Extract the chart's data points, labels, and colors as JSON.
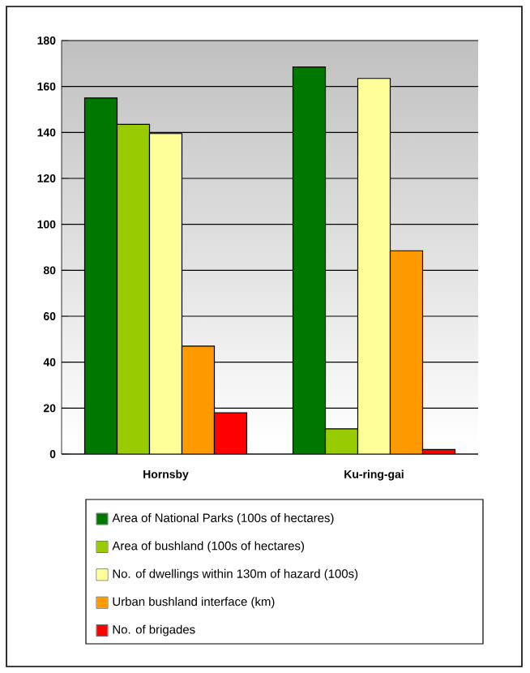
{
  "chart_data": {
    "type": "bar",
    "categories": [
      "Hornsby",
      "Ku-ring-gai"
    ],
    "series": [
      {
        "name": "Area of National Parks (100s of hectares)",
        "color": "#007800",
        "values": [
          155,
          168.5
        ]
      },
      {
        "name": "Area of bushland (100s of hectares)",
        "color": "#99cc00",
        "values": [
          143.5,
          11
        ]
      },
      {
        "name": "No. of dwellings within 130m of hazard (100s)",
        "color": "#ffff99",
        "values": [
          139.5,
          163.5
        ]
      },
      {
        "name": "Urban bushland interface (km)",
        "color": "#ff9900",
        "values": [
          47,
          88.5
        ]
      },
      {
        "name": "No. of brigades",
        "color": "#ff0000",
        "values": [
          18,
          2
        ]
      }
    ],
    "ylim": [
      0,
      180
    ],
    "yticks": [
      0,
      20,
      40,
      60,
      80,
      100,
      120,
      140,
      160,
      180
    ],
    "grid": "y",
    "legend": "bottom"
  }
}
